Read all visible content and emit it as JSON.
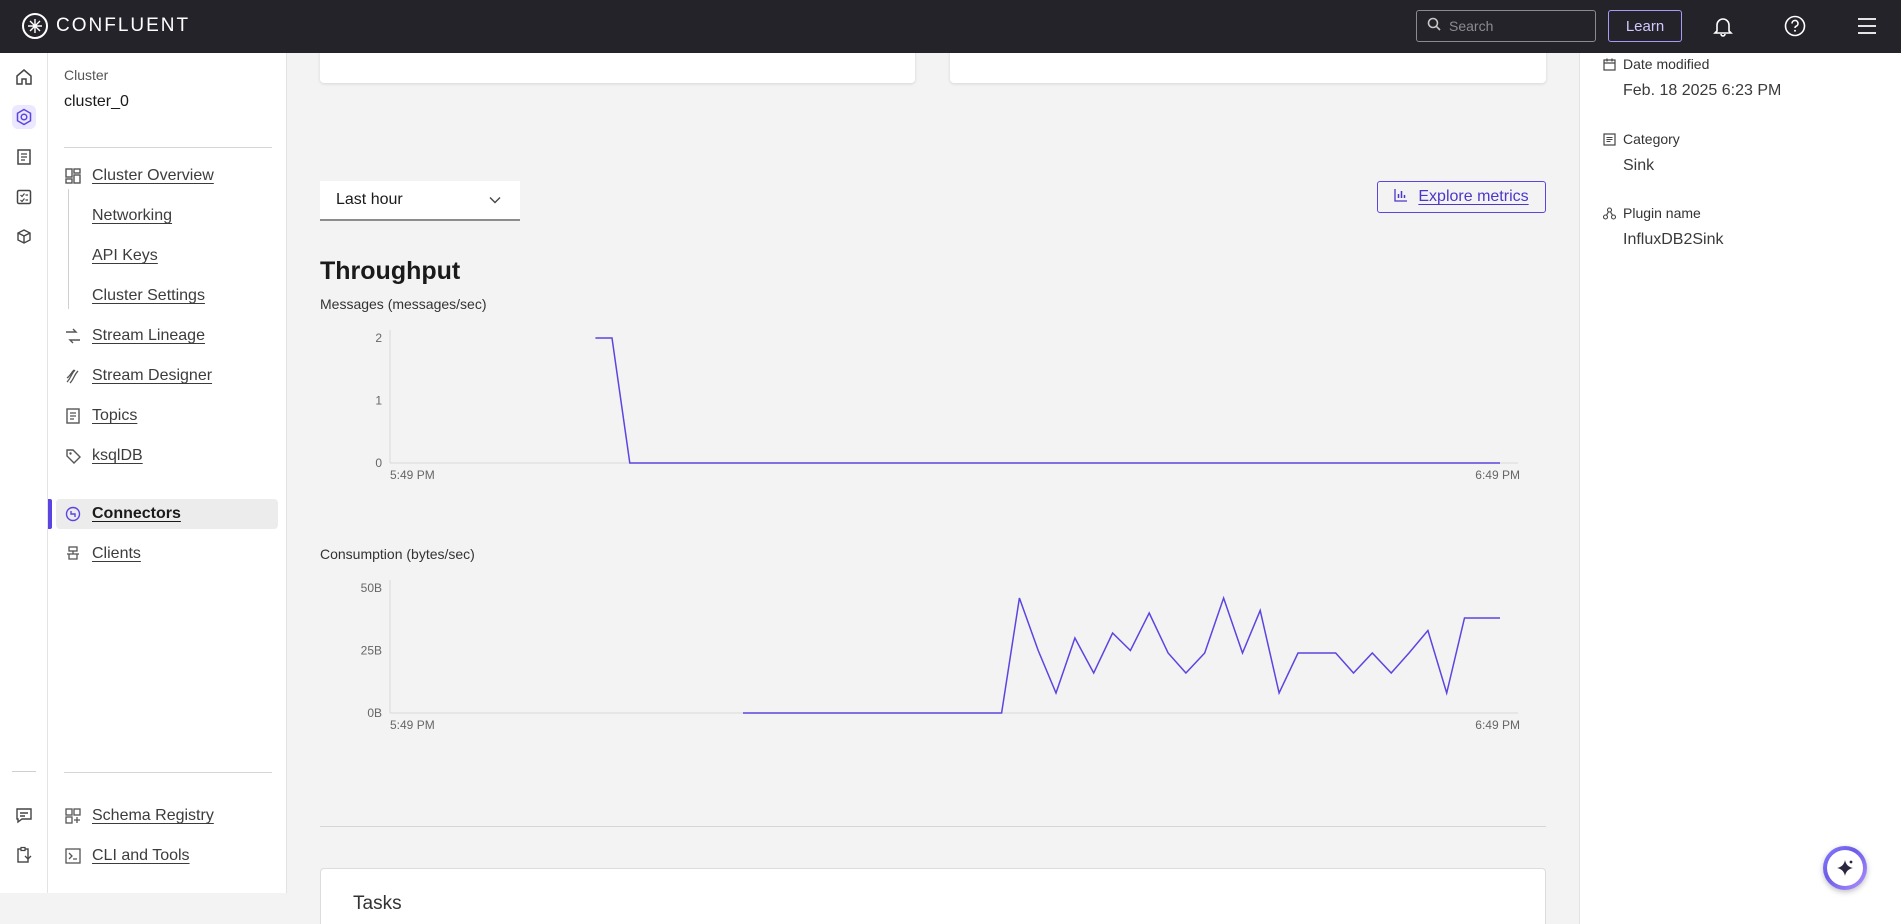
{
  "topbar": {
    "brand": "CONFLUENT",
    "search_placeholder": "Search",
    "learn_label": "Learn"
  },
  "sidebar": {
    "cluster_label": "Cluster",
    "cluster_name": "cluster_0",
    "items": [
      {
        "label": "Cluster Overview",
        "icon": "dashboard-icon"
      },
      {
        "label": "Networking",
        "icon": ""
      },
      {
        "label": "API Keys",
        "icon": ""
      },
      {
        "label": "Cluster Settings",
        "icon": ""
      },
      {
        "label": "Stream Lineage",
        "icon": "lineage-icon"
      },
      {
        "label": "Stream Designer",
        "icon": "designer-icon"
      },
      {
        "label": "Topics",
        "icon": "topics-icon"
      },
      {
        "label": "ksqlDB",
        "icon": "ksqldb-icon"
      },
      {
        "label": "Connectors",
        "icon": "connectors-icon",
        "active": true
      },
      {
        "label": "Clients",
        "icon": "clients-icon"
      }
    ],
    "bottom_items": [
      {
        "label": "Schema Registry",
        "icon": "schema-icon"
      },
      {
        "label": "CLI and Tools",
        "icon": "terminal-icon"
      }
    ]
  },
  "main": {
    "time_range": "Last hour",
    "explore_label": "Explore metrics",
    "section_title": "Throughput",
    "tasks_title": "Tasks"
  },
  "chart_data": [
    {
      "type": "line",
      "title": "Messages (messages/sec)",
      "x_tick_labels": [
        "5:49 PM",
        "6:49 PM"
      ],
      "y_tick_labels": [
        "2",
        "1",
        "0"
      ],
      "ylim": [
        0,
        2
      ],
      "series": [
        {
          "color": "#5b45e0",
          "x": [
            0.185,
            0.2,
            0.216,
            1.0
          ],
          "values": [
            2,
            2,
            0,
            0
          ]
        }
      ],
      "x_units": "fraction of last hour"
    },
    {
      "type": "line",
      "title": "Consumption (bytes/sec)",
      "x_tick_labels": [
        "5:49 PM",
        "6:49 PM"
      ],
      "y_tick_labels": [
        "50B",
        "25B",
        "0B"
      ],
      "ylim": [
        0,
        50
      ],
      "series": [
        {
          "color": "#5b45e0",
          "x": [
            0.318,
            0.551,
            0.567,
            0.584,
            0.6,
            0.617,
            0.634,
            0.651,
            0.667,
            0.684,
            0.701,
            0.717,
            0.734,
            0.751,
            0.768,
            0.784,
            0.801,
            0.818,
            0.835,
            0.852,
            0.868,
            0.885,
            0.902,
            0.918,
            0.935,
            0.952,
            0.968,
            0.985,
            1.0
          ],
          "values": [
            0,
            0,
            46,
            25,
            8,
            30,
            16,
            32,
            25,
            40,
            24,
            16,
            24,
            46,
            24,
            41,
            8,
            24,
            24,
            24,
            16,
            24,
            16,
            24,
            33,
            8,
            38,
            38,
            38
          ]
        }
      ],
      "x_units": "fraction of last hour"
    }
  ],
  "details": {
    "date_modified_label": "Date modified",
    "date_modified_value": "Feb. 18 2025 6:23 PM",
    "category_label": "Category",
    "category_value": "Sink",
    "plugin_label": "Plugin name",
    "plugin_value": "InfluxDB2Sink"
  }
}
